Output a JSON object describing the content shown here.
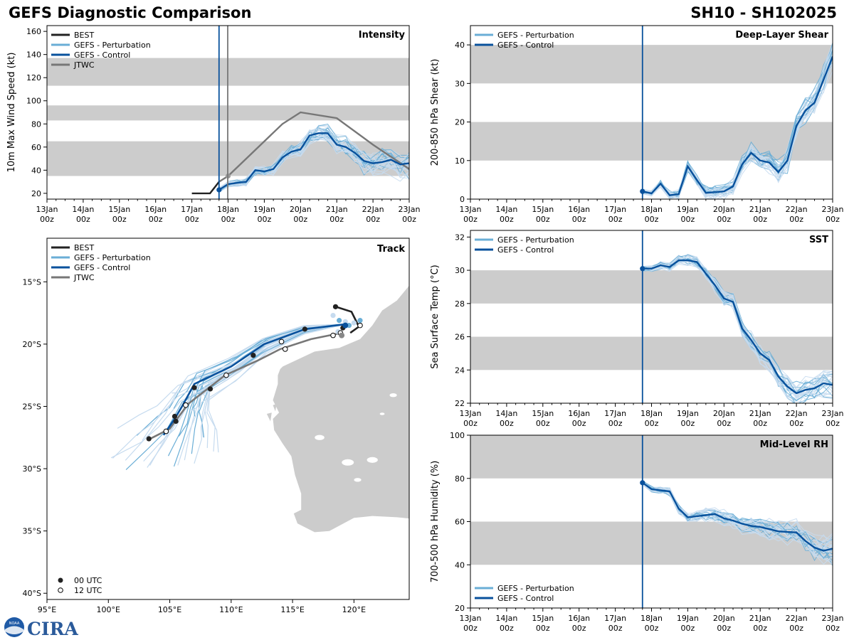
{
  "header": {
    "title_left": "GEFS Diagnostic Comparison",
    "title_right": "SH10 - SH102025"
  },
  "logo": {
    "noaa_text": "NOAA",
    "cira_text": "CIRA"
  },
  "colors": {
    "best": "#222222",
    "pert": "#6aaed6",
    "pert_light": "#c6dbef",
    "control": "#08519c",
    "jtwc": "#777777",
    "band": "#cccccc",
    "land": "#cccccc"
  },
  "time_axis": {
    "days": [
      13,
      14,
      15,
      16,
      17,
      18,
      19,
      20,
      21,
      22,
      23
    ],
    "ticks": [
      [
        "13Jan",
        "00z"
      ],
      [
        "14Jan",
        "00z"
      ],
      [
        "15Jan",
        "00z"
      ],
      [
        "16Jan",
        "00z"
      ],
      [
        "17Jan",
        "00z"
      ],
      [
        "18Jan",
        "00z"
      ],
      [
        "19Jan",
        "00z"
      ],
      [
        "20Jan",
        "00z"
      ],
      [
        "21Jan",
        "00z"
      ],
      [
        "22Jan",
        "00z"
      ],
      [
        "23Jan",
        "00z"
      ]
    ],
    "init_day": 17.75,
    "jtwc_line_day": 17.99
  },
  "chart_data": [
    {
      "id": "intensity",
      "type": "line",
      "title": "Intensity",
      "ylabel": "10m Max Wind Speed (kt)",
      "ylim": [
        15,
        165
      ],
      "yticks": [
        20,
        40,
        60,
        80,
        100,
        120,
        140,
        160
      ],
      "bands": [
        [
          35,
          65
        ],
        [
          83,
          96
        ],
        [
          113,
          137
        ]
      ],
      "legend": [
        "BEST",
        "GEFS - Perturbation",
        "GEFS - Control",
        "JTWC"
      ],
      "best": {
        "x": [
          17.0,
          17.5,
          17.75
        ],
        "y": [
          20,
          20,
          30
        ]
      },
      "jtwc": {
        "x": [
          17.75,
          18.0,
          18.5,
          19.0,
          19.5,
          20.0,
          21.0,
          22.0,
          23.0
        ],
        "y": [
          30,
          35,
          50,
          65,
          80,
          90,
          85,
          62,
          41
        ]
      },
      "control": {
        "x": [
          17.75,
          18.0,
          18.25,
          18.5,
          18.75,
          19.0,
          19.25,
          19.5,
          19.75,
          20.0,
          20.25,
          20.5,
          20.75,
          21.0,
          21.25,
          21.5,
          21.75,
          22.0,
          22.25,
          22.5,
          22.75,
          23.0
        ],
        "y": [
          23,
          28,
          29,
          30,
          40,
          39,
          41,
          51,
          56,
          58,
          70,
          72,
          72,
          62,
          60,
          55,
          48,
          46,
          47,
          49,
          45,
          46
        ]
      }
    },
    {
      "id": "shear",
      "type": "line",
      "title": "Deep-Layer Shear",
      "ylabel": "200-850 hPa Shear (kt)",
      "ylim": [
        0,
        45
      ],
      "yticks": [
        0,
        10,
        20,
        30,
        40
      ],
      "bands": [
        [
          10,
          20
        ],
        [
          30,
          40
        ]
      ],
      "legend": [
        "GEFS - Perturbation",
        "GEFS - Control"
      ],
      "control": {
        "x": [
          17.75,
          18.0,
          18.25,
          18.5,
          18.75,
          19.0,
          19.25,
          19.5,
          19.75,
          20.0,
          20.25,
          20.5,
          20.75,
          21.0,
          21.25,
          21.5,
          21.75,
          22.0,
          22.25,
          22.5,
          22.75,
          23.0
        ],
        "y": [
          2,
          1.5,
          4,
          1,
          1.3,
          8.5,
          5,
          1.6,
          1.8,
          2,
          3.3,
          9,
          12,
          10,
          9.5,
          7,
          10,
          19,
          23,
          25,
          31,
          37
        ]
      }
    },
    {
      "id": "sst",
      "type": "line",
      "title": "SST",
      "ylabel": "Sea Surface Temp (°C)",
      "ylim": [
        22,
        32.4
      ],
      "yticks": [
        22,
        24,
        26,
        28,
        30,
        32
      ],
      "bands": [
        [
          24,
          26
        ],
        [
          28,
          30
        ]
      ],
      "legend": [
        "GEFS - Perturbation",
        "GEFS - Control"
      ],
      "control": {
        "x": [
          17.75,
          18.0,
          18.25,
          18.5,
          18.75,
          19.0,
          19.25,
          19.5,
          19.75,
          20.0,
          20.25,
          20.5,
          20.75,
          21.0,
          21.25,
          21.5,
          21.75,
          22.0,
          22.25,
          22.5,
          22.75,
          23.0
        ],
        "y": [
          30.1,
          30.1,
          30.3,
          30.2,
          30.6,
          30.6,
          30.5,
          29.8,
          29.1,
          28.3,
          28.1,
          26.5,
          25.8,
          25.0,
          24.6,
          23.6,
          23.0,
          22.6,
          22.8,
          22.9,
          23.2,
          23.1
        ]
      }
    },
    {
      "id": "rh",
      "type": "line",
      "title": "Mid-Level RH",
      "ylabel": "700-500 hPa Humidity (%)",
      "ylim": [
        20,
        100
      ],
      "yticks": [
        20,
        40,
        60,
        80,
        100
      ],
      "bands": [
        [
          40,
          60
        ],
        [
          80,
          100
        ]
      ],
      "legend": [
        "GEFS - Perturbation",
        "GEFS - Control"
      ],
      "control": {
        "x": [
          17.75,
          18.0,
          18.25,
          18.5,
          18.75,
          19.0,
          19.25,
          19.5,
          19.75,
          20.0,
          20.25,
          20.5,
          20.75,
          21.0,
          21.25,
          21.5,
          21.75,
          22.0,
          22.25,
          22.5,
          22.75,
          23.0
        ],
        "y": [
          78,
          75,
          74.5,
          74,
          66,
          62,
          62.5,
          63,
          63.5,
          61.5,
          60.5,
          59,
          58,
          57.5,
          56.5,
          55.5,
          55.2,
          55,
          51,
          48,
          46.5,
          47.5
        ]
      }
    },
    {
      "id": "track",
      "type": "scatter",
      "title": "Track",
      "xlim": [
        95,
        124.5
      ],
      "ylim": [
        -40.5,
        -11.5
      ],
      "xticks": [
        95,
        100,
        105,
        110,
        115,
        120
      ],
      "xticklabels": [
        "95°E",
        "100°E",
        "105°E",
        "110°E",
        "115°E",
        "120°E"
      ],
      "yticks": [
        -15,
        -20,
        -25,
        -30,
        -35,
        -40
      ],
      "yticklabels": [
        "15°S",
        "20°S",
        "25°S",
        "30°S",
        "35°S",
        "40°S"
      ],
      "legend": [
        "BEST",
        "GEFS - Perturbation",
        "GEFS - Control",
        "JTWC"
      ],
      "utc_legend": [
        "00 UTC",
        "12 UTC"
      ],
      "best": {
        "lon": [
          118.5,
          119.8,
          120.4,
          119.7
        ],
        "lat": [
          -17.0,
          -17.4,
          -18.6,
          -19.1
        ]
      },
      "control": {
        "lon": [
          119.3,
          116.0,
          112.7,
          110.0,
          107.0,
          106.0,
          105.4,
          104.5
        ],
        "lat": [
          -18.4,
          -18.8,
          -20.0,
          -21.8,
          -23.2,
          -25.0,
          -26.0,
          -27.3
        ]
      },
      "jtwc": {
        "lon": [
          119.0,
          116.5,
          114.0,
          112.2,
          109.5,
          106.5,
          105.0,
          103.2
        ],
        "lat": [
          -19.1,
          -19.6,
          -20.4,
          -21.3,
          -22.5,
          -24.8,
          -26.8,
          -27.7
        ]
      },
      "dots_00": {
        "lon": [
          118.5,
          119.1,
          116.0,
          111.8,
          108.3,
          107.0,
          105.4,
          105.5,
          103.3
        ],
        "lat": [
          -17.0,
          -18.7,
          -18.8,
          -20.9,
          -23.6,
          -23.5,
          -25.8,
          -26.2,
          -27.6
        ]
      },
      "dots_12": {
        "lon": [
          120.5,
          118.9,
          118.3,
          114.1,
          114.4,
          109.6,
          106.3,
          104.7
        ],
        "lat": [
          -18.5,
          -19.1,
          -19.3,
          -19.8,
          -20.4,
          -22.5,
          -24.9,
          -27.0
        ]
      },
      "pert_dots": {
        "lon": [
          118.3,
          118.8,
          119.3,
          119.6,
          120.0,
          120.5,
          118.7,
          119.0
        ],
        "lat": [
          -17.7,
          -18.1,
          -18.2,
          -18.5,
          -18.3,
          -18.1,
          -19.0,
          -19.3
        ]
      }
    }
  ]
}
